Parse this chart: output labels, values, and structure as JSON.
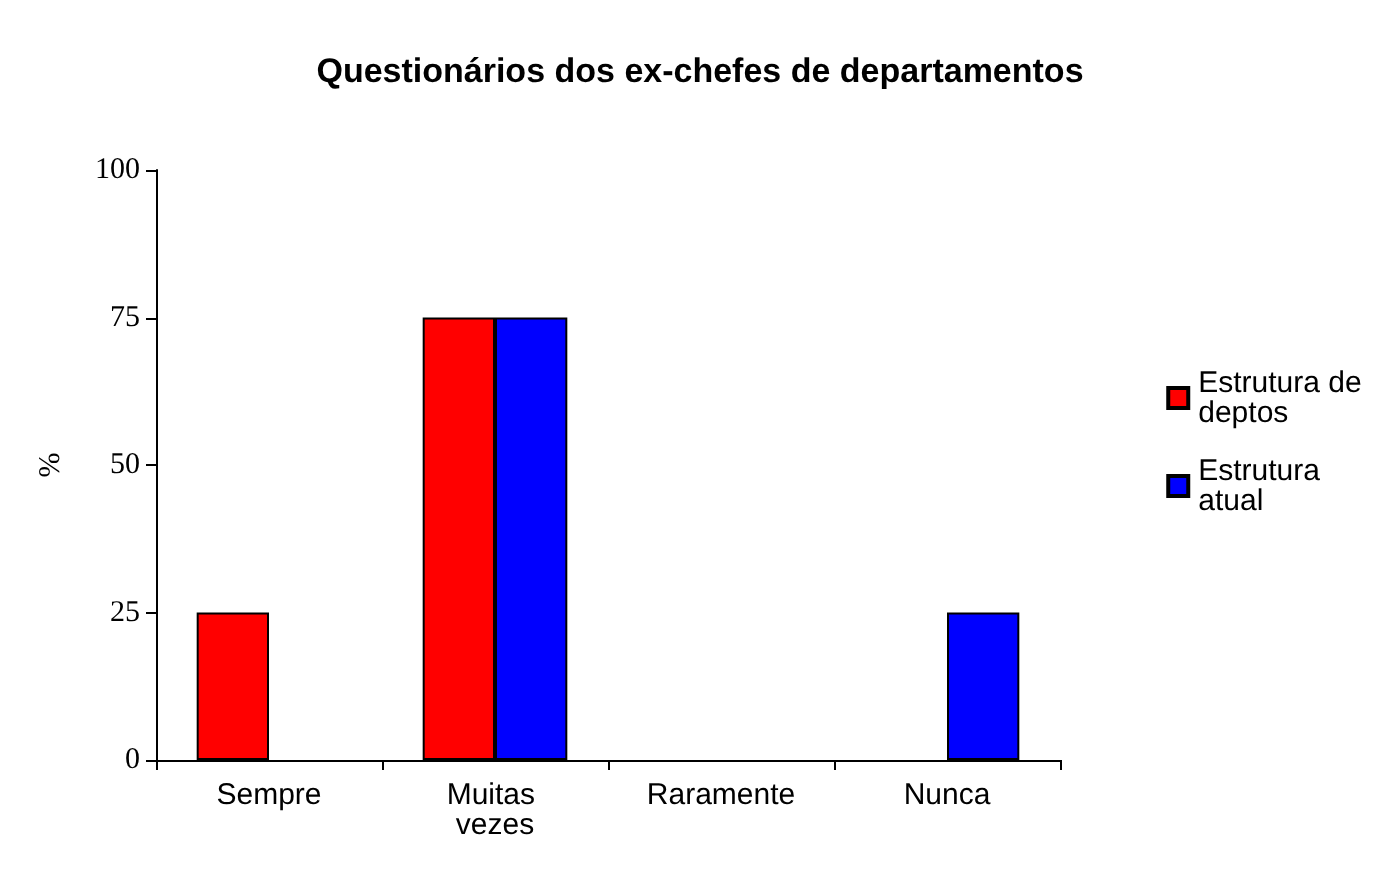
{
  "chart_data": {
    "type": "bar",
    "title": "Questionários dos ex-chefes de departamentos",
    "ylabel": "%",
    "categories": [
      "Sempre",
      "Muitas vezes",
      "Raramente",
      "Nunca"
    ],
    "series": [
      {
        "name": "Estrutura de deptos",
        "color": "#ff0000",
        "values": [
          25,
          75,
          0,
          0
        ]
      },
      {
        "name": "Estrutura atual",
        "color": "#0000ff",
        "values": [
          0,
          75,
          0,
          25
        ]
      }
    ],
    "ylim": [
      0,
      100
    ],
    "yticks": [
      0,
      25,
      50,
      75,
      100
    ],
    "grid": false,
    "legend": "right"
  }
}
